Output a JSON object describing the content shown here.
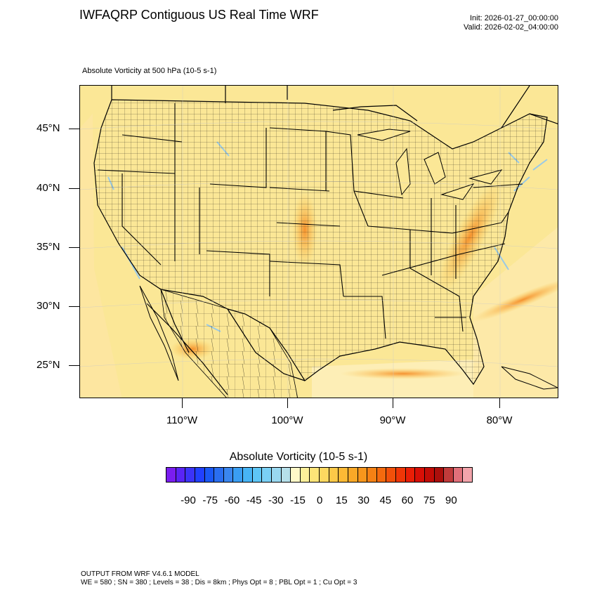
{
  "header": {
    "title": "IWFAQRP Contiguous US Real Time WRF",
    "init": "Init: 2026-01-27_00:00:00",
    "valid": "Valid: 2026-02-02_04:00:00",
    "field_label": "Absolute Vorticity at 500 hPa   (10-5 s-1)"
  },
  "map": {
    "lat_labels": [
      "45°N",
      "40°N",
      "35°N",
      "30°N",
      "25°N"
    ],
    "lon_labels": [
      "110°W",
      "100°W",
      "90°W",
      "80°W"
    ],
    "colors": {
      "background": "#fbe89a",
      "land": "#fbe896",
      "ocean": "#fde7a4",
      "boundary": "#000000"
    }
  },
  "colorbar": {
    "title": "Absolute Vorticity  (10-5 s-1)",
    "labels": [
      "-90",
      "-75",
      "-60",
      "-45",
      "-30",
      "-15",
      "0",
      "15",
      "30",
      "45",
      "60",
      "75",
      "90"
    ],
    "colors": [
      "#7a1df0",
      "#5a24f5",
      "#3c33f8",
      "#2140ff",
      "#1a58f5",
      "#2a6ef0",
      "#3a86ef",
      "#3a9ef3",
      "#47b4f5",
      "#5ec6f6",
      "#7ad0f5",
      "#99d8f0",
      "#b6e0ea",
      "#fff8c8",
      "#fef09a",
      "#fde478",
      "#fdd860",
      "#fdc948",
      "#fcb935",
      "#f9a827",
      "#f7961c",
      "#f58114",
      "#f46a0e",
      "#f2500a",
      "#f03607",
      "#ea1e06",
      "#d80f06",
      "#c20c06",
      "#ab0f0c",
      "#c03b3b",
      "#e0707a",
      "#f2a4ab"
    ]
  },
  "footer": {
    "line1": "OUTPUT FROM WRF V4.6.1 MODEL",
    "line2": "WE = 580 ; SN = 380 ; Levels = 38 ; Dis = 8km ; Phys Opt = 8 ; PBL Opt = 1 ; Cu Opt = 3"
  }
}
